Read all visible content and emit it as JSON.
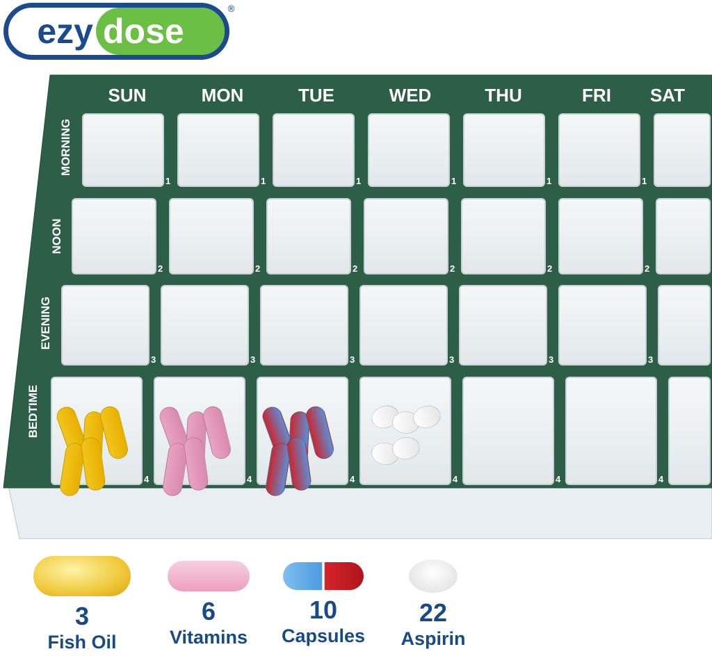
{
  "brand": {
    "left": "ezy",
    "right": "dose",
    "registered": "®",
    "colors": {
      "blue": "#1b4a8f",
      "green": "#6cbf45"
    }
  },
  "organizer": {
    "color": "#2d5f48",
    "days": [
      "SUN",
      "MON",
      "TUE",
      "WED",
      "THU",
      "FRI",
      "SAT"
    ],
    "rows": [
      {
        "label": "MORNING",
        "number": "1"
      },
      {
        "label": "NOON",
        "number": "2"
      },
      {
        "label": "EVENING",
        "number": "3"
      },
      {
        "label": "BEDTIME",
        "number": "4"
      }
    ]
  },
  "legend": [
    {
      "count": "3",
      "name": "Fish Oil",
      "icon": "fish-oil-softgel-icon"
    },
    {
      "count": "6",
      "name": "Vitamins",
      "icon": "vitamin-tablet-icon"
    },
    {
      "count": "10",
      "name": "Capsules",
      "icon": "capsule-icon"
    },
    {
      "count": "22",
      "name": "Aspirin",
      "icon": "aspirin-tablet-icon"
    }
  ]
}
